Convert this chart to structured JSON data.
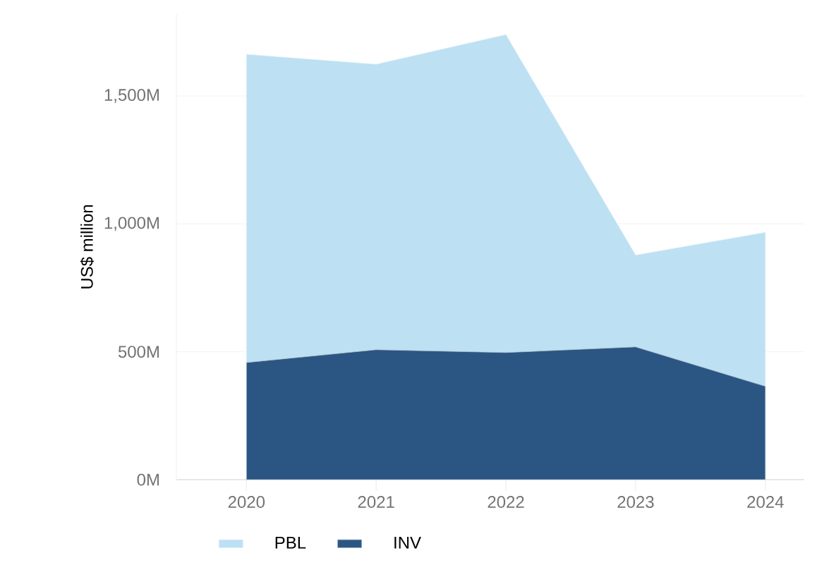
{
  "chart_data": {
    "type": "area",
    "ylabel": "US$ million",
    "categories": [
      "2020",
      "2021",
      "2022",
      "2023",
      "2024"
    ],
    "series": [
      {
        "name": "INV",
        "color": "#2b5683",
        "values": [
          458,
          508,
          497,
          519,
          365
        ]
      },
      {
        "name": "PBL",
        "color": "#bde0f3",
        "values": [
          1205,
          1116,
          1243,
          359,
          602
        ]
      }
    ],
    "stacked": true,
    "ylim": [
      0,
      1820
    ],
    "yticks": [
      {
        "value": 0,
        "label": "0M"
      },
      {
        "value": 500,
        "label": "500M"
      },
      {
        "value": 1000,
        "label": "1,000M"
      },
      {
        "value": 1500,
        "label": "1,500M"
      }
    ],
    "grid": "y",
    "legend": "bottom"
  }
}
